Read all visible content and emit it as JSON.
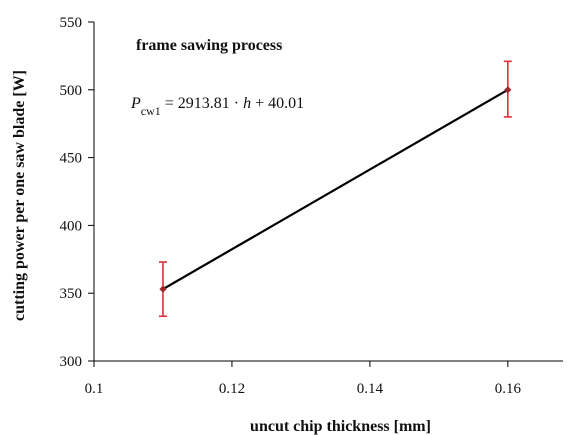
{
  "chart_data": {
    "type": "line",
    "title": "",
    "xlabel": "uncut chip thickness [mm]",
    "ylabel": "cutting power per one saw blade [W]",
    "xlim": [
      0.1,
      0.168
    ],
    "ylim": [
      300,
      550
    ],
    "x_ticks": [
      0.1,
      0.12,
      0.14,
      0.16
    ],
    "y_ticks": [
      300,
      350,
      400,
      450,
      500,
      550
    ],
    "x_tick_labels": [
      "0.1",
      "0.12",
      "0.14",
      "0.16"
    ],
    "y_tick_labels": [
      "300",
      "350",
      "400",
      "450",
      "500",
      "550"
    ],
    "grid": false,
    "series": [
      {
        "x": [
          0.11,
          0.16
        ],
        "y": [
          353,
          500
        ],
        "error_low": [
          333,
          480
        ],
        "error_high": [
          373,
          521
        ],
        "line_color": "#000000",
        "marker_color": "#9e2a2b",
        "error_color": "#e0303a"
      }
    ],
    "annotations": {
      "process_label": "frame sawing process",
      "equation_lhs_symbol": "P",
      "equation_lhs_subscript": "cw1",
      "equation_rhs_part1": " = 2913.81 · ",
      "equation_rhs_var": "h",
      "equation_rhs_part2": " + 40.01"
    }
  }
}
